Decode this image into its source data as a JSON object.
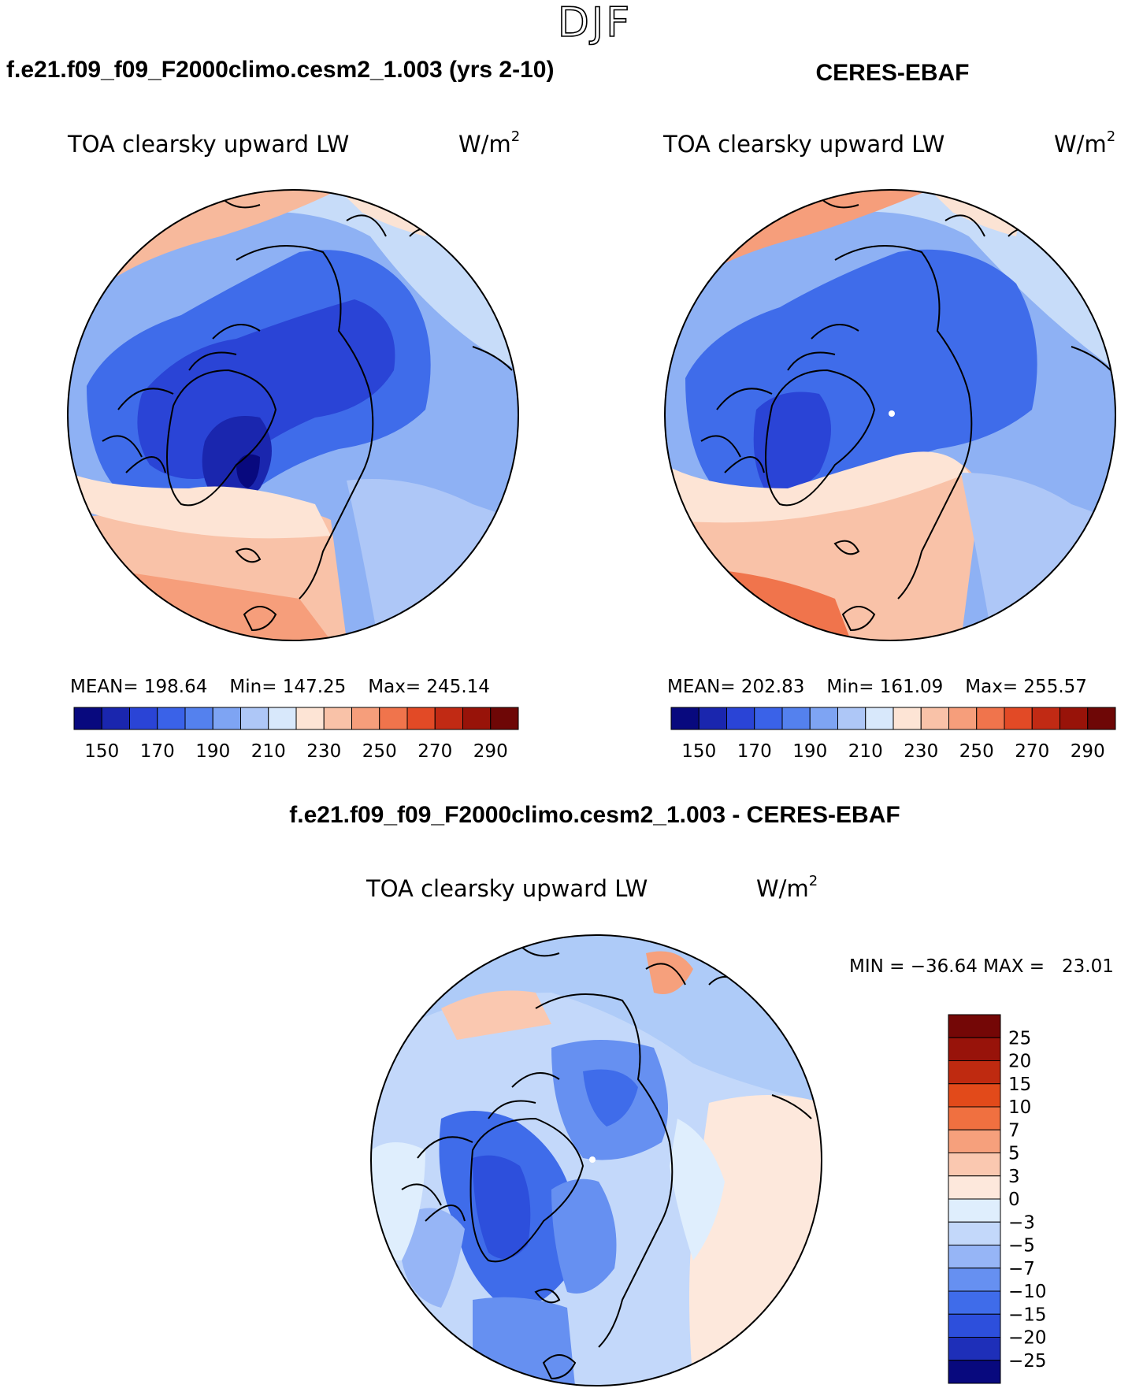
{
  "season": "DJF",
  "colors": {
    "model_scale": [
      "#08097e",
      "#1a26ae",
      "#2a44d6",
      "#3a62e8",
      "#5481ee",
      "#7ea4f3",
      "#aec7f7",
      "#d8e8fb",
      "#fde4d5",
      "#f9c2a8",
      "#f69e7b",
      "#f0744c",
      "#e24a26",
      "#c12a14",
      "#981309",
      "#6e0706"
    ],
    "diff_scale": [
      "#08097e",
      "#1e2fb9",
      "#2d4fdc",
      "#3f6cea",
      "#6690f1",
      "#96b5f6",
      "#c3d8fa",
      "#dfeefd",
      "#fde8dc",
      "#fac8b0",
      "#f6a07c",
      "#f07040",
      "#e24a1a",
      "#bf2a10",
      "#98130a",
      "#740706"
    ],
    "coast": "#000000",
    "pole_marker": "#ffffff"
  },
  "chart_data": [
    {
      "type": "heatmap",
      "projection": "north-polar-stereographic",
      "case_title": "f.e21.f09_f09_F2000climo.cesm2_1.003 (yrs 2-10)",
      "variable": "TOA clearsky upward LW",
      "units_base": "W/m",
      "units_exp": "2",
      "stats": {
        "mean_label": "MEAN=",
        "mean": "198.64",
        "min_label": "Min=",
        "min": "147.25",
        "max_label": "Max=",
        "max": "245.14"
      },
      "colorbar_levels": [
        "150",
        "170",
        "190",
        "210",
        "230",
        "250",
        "270",
        "290"
      ],
      "colorbar_bins": 16
    },
    {
      "type": "heatmap",
      "projection": "north-polar-stereographic",
      "case_title": "CERES-EBAF",
      "variable": "TOA clearsky upward LW",
      "units_base": "W/m",
      "units_exp": "2",
      "stats": {
        "mean_label": "MEAN=",
        "mean": "202.83",
        "min_label": "Min=",
        "min": "161.09",
        "max_label": "Max=",
        "max": "255.57"
      },
      "colorbar_levels": [
        "150",
        "170",
        "190",
        "210",
        "230",
        "250",
        "270",
        "290"
      ],
      "colorbar_bins": 16
    },
    {
      "type": "heatmap",
      "projection": "north-polar-stereographic",
      "case_title": "f.e21.f09_f09_F2000climo.cesm2_1.003 - CERES-EBAF",
      "variable": "TOA clearsky upward LW",
      "units_base": "W/m",
      "units_exp": "2",
      "minmax_text": "MIN = −36.64 MAX =   23.01",
      "colorbar_levels": [
        "25",
        "20",
        "15",
        "10",
        "7",
        "5",
        "3",
        "0",
        "−3",
        "−5",
        "−7",
        "−10",
        "−15",
        "−20",
        "−25"
      ],
      "colorbar_bins": 16
    }
  ]
}
